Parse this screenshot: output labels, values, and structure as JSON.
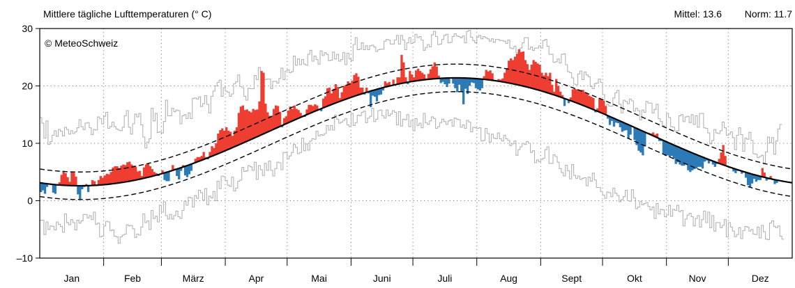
{
  "chart_data": {
    "type": "bar",
    "title": "Mittlere tägliche Lufttemperaturen (° C)",
    "copyright": "© MeteoSchweiz",
    "stats": {
      "mittel_label": "Mittel: 13.6",
      "norm_label": "Norm: 11.7"
    },
    "ylim": [
      -10,
      30
    ],
    "yticks": [
      -10,
      0,
      10,
      20,
      30
    ],
    "ytick_labels": [
      "–10",
      "0",
      "10",
      "20",
      "30"
    ],
    "months": [
      "Jan",
      "Feb",
      "März",
      "Apr",
      "Mai",
      "Juni",
      "Juli",
      "Aug",
      "Sept",
      "Okt",
      "Nov",
      "Dez"
    ],
    "month_days": [
      31,
      28,
      31,
      30,
      31,
      30,
      31,
      31,
      30,
      31,
      30,
      31
    ],
    "grid": true,
    "norm": {
      "min": 2.6,
      "max": 21.4,
      "peak_day": 202
    },
    "norm_band": 2.4,
    "colors": {
      "above_norm": "#ee3e32",
      "below_norm": "#2c7bb6",
      "extremes": "#b3b3b3",
      "norm_line": "#000000"
    },
    "series": [
      {
        "name": "Tagesmittel",
        "values": [
          1.5,
          1.8,
          1.2,
          2.4,
          3.0,
          2.8,
          1.4,
          1.2,
          2.6,
          3.2,
          4.5,
          5.2,
          4.8,
          4.1,
          3.3,
          5.0,
          4.9,
          4.2,
          1.1,
          0.2,
          2.0,
          2.4,
          2.9,
          1.5,
          2.7,
          3.6,
          3.4,
          2.6,
          3.6,
          4.3,
          4.0,
          4.4,
          4.7,
          4.6,
          5.0,
          5.8,
          6.0,
          6.0,
          5.7,
          6.1,
          6.3,
          6.2,
          6.7,
          6.8,
          6.3,
          6.1,
          5.9,
          5.1,
          5.2,
          4.3,
          5.8,
          6.3,
          6.5,
          6.0,
          5.5,
          5.0,
          4.8,
          4.3,
          4.6,
          5.3,
          3.6,
          3.4,
          3.4,
          5.3,
          6.2,
          5.6,
          4.3,
          3.7,
          5.2,
          6.2,
          4.4,
          4.1,
          4.6,
          5.2,
          6.4,
          7.3,
          7.6,
          7.6,
          7.8,
          8.5,
          7.6,
          7.2,
          8.5,
          9.5,
          9.2,
          10.0,
          11.7,
          12.3,
          12.6,
          12.2,
          12.8,
          12.2,
          12.0,
          11.3,
          12.2,
          12.8,
          15.3,
          16.4,
          16.6,
          15.8,
          15.9,
          15.6,
          15.4,
          16.0,
          15.8,
          15.9,
          17.3,
          22.6,
          22.3,
          16.9,
          15.4,
          14.8,
          14.6,
          16.0,
          16.6,
          16.5,
          15.5,
          12.8,
          14.4,
          14.7,
          15.7,
          16.4,
          16.0,
          16.6,
          16.0,
          15.8,
          15.3,
          14.8,
          14.6,
          15.9,
          16.7,
          16.7,
          16.5,
          16.8,
          16.6,
          16.0,
          15.6,
          17.8,
          18.2,
          19.6,
          19.7,
          18.7,
          19.5,
          20.3,
          19.8,
          17.9,
          18.9,
          20.0,
          20.2,
          20.8,
          20.5,
          20.9,
          21.9,
          22.2,
          21.6,
          19.7,
          19.7,
          18.5,
          19.7,
          18.7,
          16.3,
          18.3,
          18.1,
          17.3,
          18.4,
          18.5,
          19.2,
          20.8,
          20.5,
          20.7,
          20.0,
          21.1,
          20.3,
          21.5,
          21.5,
          25.4,
          24.1,
          21.5,
          20.3,
          22.6,
          22.0,
          21.5,
          22.7,
          23.0,
          22.6,
          22.3,
          22.0,
          21.3,
          22.1,
          22.9,
          23.4,
          24.1,
          23.4,
          21.8,
          20.5,
          20.7,
          20.3,
          19.8,
          20.4,
          21.5,
          20.4,
          19.6,
          18.9,
          20.2,
          18.9,
          16.8,
          19.5,
          18.6,
          20.0,
          20.6,
          20.5,
          19.6,
          19.4,
          19.2,
          19.6,
          21.7,
          22.8,
          22.5,
          22.7,
          22.2,
          21.0,
          20.8,
          21.2,
          21.1,
          21.3,
          22.3,
          23.1,
          24.4,
          24.8,
          24.5,
          25.1,
          25.6,
          26.4,
          25.9,
          26.0,
          24.5,
          23.8,
          22.8,
          23.7,
          24.5,
          24.2,
          23.9,
          23.7,
          22.3,
          21.8,
          22.3,
          21.7,
          22.3,
          20.2,
          19.0,
          21.2,
          20.0,
          19.0,
          18.4,
          16.5,
          17.6,
          17.0,
          18.0,
          19.4,
          19.5,
          19.4,
          19.3,
          19.3,
          19.3,
          18.9,
          18.7,
          18.3,
          18.1,
          17.9,
          15.4,
          16.1,
          17.9,
          17.7,
          17.4,
          16.5,
          14.3,
          13.2,
          13.9,
          12.9,
          13.6,
          13.5,
          12.8,
          12.0,
          12.2,
          12.3,
          10.8,
          11.5,
          12.9,
          10.6,
          9.7,
          8.7,
          8.4,
          7.9,
          9.5,
          11.9,
          11.8,
          11.7,
          11.9,
          11.5,
          11.7,
          10.4,
          10.4,
          8.2,
          7.8,
          7.9,
          7.7,
          7.8,
          7.3,
          6.4,
          6.7,
          6.3,
          6.1,
          6.1,
          6.4,
          5.3,
          5.0,
          5.3,
          5.5,
          5.6,
          5.9,
          5.9,
          5.6,
          6.8,
          7.0,
          6.5,
          6.9,
          6.3,
          5.9,
          6.4,
          7.3,
          8.4,
          9.7,
          7.8,
          6.1,
          5.7,
          5.7,
          5.1,
          4.8,
          5.2,
          5.4,
          4.7,
          4.9,
          4.0,
          2.7,
          2.3,
          3.0,
          3.8,
          3.3,
          3.6,
          3.6,
          5.7,
          4.9,
          3.5,
          3.7,
          4.3,
          3.6,
          2.9,
          3.1
        ]
      },
      {
        "name": "Tagesmaximum",
        "values": [
          14.5,
          13.5,
          10.9,
          13.9,
          9.8,
          10.3,
          11.4,
          12.2,
          11.2,
          12.4,
          12.1,
          11.3,
          12.8,
          12.4,
          11.6,
          12.2,
          11.7,
          12.0,
          12.7,
          14.1,
          12.9,
          12.4,
          13.5,
          13.6,
          12.7,
          11.5,
          12.4,
          12.3,
          14.6,
          14.3,
          13.4,
          14.7,
          15.4,
          12.6,
          12.9,
          13.7,
          12.9,
          12.5,
          12.3,
          12.2,
          12.8,
          14.8,
          15.7,
          12.8,
          11.6,
          13.4,
          15.1,
          14.6,
          15.2,
          13.2,
          11.1,
          9.2,
          10.2,
          10.8,
          16.1,
          13.9,
          15.2,
          11.9,
          12.0,
          11.8,
          13.8,
          17.5,
          14.8,
          14.8,
          16.1,
          15.5,
          15.8,
          15.7,
          13.4,
          14.8,
          15.0,
          14.3,
          15.3,
          14.3,
          17.8,
          17.9,
          17.7,
          18.1,
          16.4,
          16.9,
          18.3,
          16.8,
          15.3,
          18.2,
          19.1,
          20.0,
          20.6,
          21.0,
          18.2,
          19.7,
          19.1,
          18.9,
          18.2,
          18.6,
          20.4,
          20.7,
          21.9,
          19.9,
          19.7,
          18.2,
          17.5,
          19.6,
          19.5,
          19.5,
          21.8,
          21.1,
          23.2,
          22.5,
          21.6,
          21.1,
          21.2,
          21.2,
          19.5,
          20.8,
          20.8,
          20.5,
          21.3,
          23.1,
          21.1,
          22.6,
          22.8,
          22.3,
          22.5,
          25.2,
          23.6,
          24.7,
          23.7,
          24.6,
          23.8,
          23.6,
          25.5,
          26.2,
          24.3,
          25.2,
          24.6,
          23.8,
          26.1,
          25.3,
          25.8,
          25.5,
          24.4,
          24.5,
          25.9,
          24.7,
          25.5,
          24.3,
          24.6,
          25.8,
          23.7,
          25.7,
          24.7,
          24.4,
          27.2,
          28.4,
          26.3,
          26.4,
          27.5,
          26.3,
          27.0,
          26.3,
          27.0,
          27.1,
          26.8,
          26.0,
          26.3,
          26.4,
          26.4,
          27.8,
          28.1,
          28.0,
          27.3,
          27.3,
          28.0,
          28.8,
          27.3,
          28.8,
          28.0,
          26.3,
          27.5,
          28.4,
          27.4,
          27.6,
          29.0,
          28.4,
          28.6,
          28.0,
          26.2,
          26.7,
          27.2,
          26.8,
          28.9,
          29.5,
          28.6,
          27.2,
          27.3,
          28.1,
          28.8,
          29.0,
          27.5,
          27.6,
          28.6,
          29.1,
          28.7,
          28.6,
          28.4,
          28.7,
          27.5,
          29.5,
          29.7,
          28.5,
          27.9,
          27.5,
          28.5,
          28.8,
          28.2,
          28.6,
          28.4,
          28.2,
          27.8,
          28.2,
          27.6,
          28.1,
          28.1,
          27.9,
          27.9,
          27.8,
          27.4,
          28.0,
          26.6,
          26.5,
          26.9,
          25.8,
          25.4,
          26.6,
          27.5,
          28.4,
          28.4,
          26.4,
          26.8,
          26.2,
          26.6,
          26.6,
          27.0,
          26.6,
          27.9,
          28.1,
          26.9,
          25.5,
          25.5,
          24.1,
          24.2,
          24.7,
          24.0,
          25.5,
          25.6,
          23.7,
          22.5,
          22.3,
          21.4,
          20.3,
          20.2,
          22.1,
          22.6,
          21.1,
          22.4,
          21.9,
          21.6,
          19.9,
          19.5,
          20.4,
          20.5,
          21.2,
          20.6,
          18.5,
          16.4,
          16.8,
          16.5,
          16.5,
          17.9,
          18.8,
          19.2,
          16.8,
          15.3,
          17.5,
          17.3,
          16.9,
          17.7,
          17.4,
          15.6,
          16.1,
          15.7,
          14.1,
          15.8,
          15.4,
          17.3,
          17.0,
          17.0,
          15.3,
          15.9,
          16.8,
          14.3,
          13.8,
          13.1,
          12.8,
          15.2,
          14.5,
          12.9,
          12.8,
          12.1,
          12.2,
          14.8,
          15.0,
          13.8,
          14.6,
          14.7,
          13.6,
          15.0,
          13.3,
          14.8,
          12.8,
          15.2,
          15.2,
          12.7,
          12.6,
          11.8,
          9.9,
          10.5,
          12.4,
          11.8,
          11.7,
          12.2,
          13.7,
          12.7,
          11.4,
          11.6,
          12.0,
          11.0,
          8.9,
          11.4,
          12.7,
          11.5,
          8.6,
          10.9,
          10.7,
          11.9,
          10.5,
          8.2,
          8.1,
          7.5,
          7.7,
          7.9,
          6.4,
          8.5,
          11.1,
          10.1,
          11.0,
          8.1,
          10.4,
          12.5,
          13.3
        ]
      },
      {
        "name": "Tagesminimum",
        "values": [
          -3.4,
          -3.4,
          -5.9,
          -3.7,
          -5.0,
          -4.4,
          -4.5,
          -5.1,
          -3.7,
          -4.1,
          -4.5,
          -5.5,
          -2.3,
          -3.8,
          -4.2,
          -3.3,
          -3.8,
          -5.1,
          -3.4,
          -3.9,
          -3.5,
          -2.4,
          -2.4,
          -3.0,
          -2.6,
          -3.3,
          -2.0,
          -4.1,
          -3.9,
          -6.3,
          -6.2,
          -4.4,
          -3.6,
          -3.7,
          -5.2,
          -5.1,
          -6.2,
          -6.3,
          -7.4,
          -6.3,
          -6.0,
          -5.8,
          -4.2,
          -4.4,
          -4.3,
          -4.9,
          -6.4,
          -5.8,
          -6.0,
          -4.6,
          -2.3,
          -3.8,
          -3.5,
          -5.0,
          -1.7,
          -3.1,
          -2.7,
          -3.7,
          -0.8,
          -2.0,
          -0.2,
          -2.6,
          -3.2,
          -2.4,
          -3.2,
          -2.6,
          -1.8,
          -2.8,
          -3.1,
          -1.7,
          -0.1,
          -0.8,
          0.6,
          0.5,
          -1.1,
          0.9,
          0.4,
          1.8,
          1.4,
          0.1,
          2.1,
          -0.7,
          0.8,
          0.5,
          1.6,
          0.0,
          3.4,
          2.1,
          4.3,
          4.2,
          3.5,
          2.7,
          2.5,
          4.1,
          1.7,
          2.2,
          3.4,
          3.6,
          5.8,
          5.1,
          5.2,
          6.1,
          5.9,
          5.3,
          6.7,
          3.7,
          6.1,
          5.4,
          4.4,
          6.5,
          5.3,
          6.9,
          5.3,
          4.3,
          5.6,
          6.7,
          6.6,
          5.4,
          8.4,
          8.4,
          7.3,
          7.8,
          8.4,
          9.8,
          9.3,
          8.2,
          8.4,
          10.9,
          8.7,
          9.9,
          8.8,
          10.4,
          10.8,
          10.7,
          12.1,
          11.3,
          11.5,
          11.4,
          11.7,
          13.1,
          12.3,
          13.1,
          12.3,
          14.9,
          14.2,
          13.5,
          13.7,
          14.0,
          14.3,
          13.2,
          12.9,
          15.2,
          13.1,
          13.6,
          14.9,
          14.8,
          15.4,
          15.6,
          13.6,
          14.4,
          14.7,
          16.1,
          13.8,
          14.2,
          15.7,
          15.8,
          14.8,
          14.4,
          15.8,
          14.8,
          15.1,
          15.7,
          15.4,
          13.2,
          15.5,
          13.0,
          14.2,
          14.1,
          15.0,
          12.9,
          14.0,
          12.2,
          14.3,
          13.1,
          13.5,
          12.7,
          15.2,
          13.6,
          13.3,
          13.9,
          14.6,
          14.3,
          12.6,
          12.9,
          13.6,
          14.2,
          13.8,
          13.3,
          13.9,
          14.1,
          13.0,
          14.4,
          14.2,
          14.1,
          12.8,
          13.2,
          12.6,
          14.0,
          13.7,
          12.0,
          12.8,
          12.7,
          12.6,
          12.7,
          10.4,
          10.5,
          12.6,
          11.7,
          10.2,
          11.6,
          10.9,
          10.8,
          11.8,
          10.8,
          10.4,
          11.4,
          10.8,
          10.5,
          9.6,
          9.9,
          10.4,
          7.9,
          8.9,
          9.4,
          10.0,
          9.8,
          10.3,
          10.0,
          8.4,
          8.7,
          6.6,
          7.1,
          6.8,
          7.2,
          7.4,
          8.9,
          9.4,
          6.5,
          6.5,
          8.0,
          7.7,
          6.7,
          5.6,
          4.9,
          4.3,
          6.2,
          5.2,
          3.8,
          6.3,
          4.4,
          3.9,
          4.3,
          3.7,
          3.9,
          4.0,
          2.6,
          4.1,
          3.4,
          4.8,
          3.6,
          2.3,
          2.3,
          1.6,
          1.0,
          0.4,
          1.5,
          1.4,
          0.7,
          2.2,
          1.3,
          0.9,
          -0.2,
          0.2,
          0.7,
          1.8,
          0.0,
          -0.1,
          1.9,
          0.5,
          -1.4,
          -1.1,
          -0.1,
          -0.7,
          -0.5,
          -0.3,
          -1.0,
          -1.6,
          -1.1,
          -3.1,
          -0.5,
          -2.3,
          -1.5,
          -1.6,
          -2.8,
          -2.5,
          -0.8,
          -2.7,
          -1.5,
          -1.7,
          -0.8,
          -1.9,
          -1.7,
          -4.4,
          -3.2,
          -2.5,
          -2.2,
          -2.8,
          -4.4,
          -3.1,
          -2.6,
          -4.6,
          -3.3,
          -1.8,
          -3.8,
          -2.0,
          -4.7,
          -2.6,
          -5.3,
          -3.8,
          -3.8,
          -4.7,
          -4.3,
          -3.3,
          -6.3,
          -3.8,
          -4.6,
          -5.3,
          -6.3,
          -5.9,
          -4.7,
          -6.6,
          -5.2,
          -4.5,
          -4.6,
          -5.3,
          -5.0,
          -5.8,
          -5.9,
          -4.6,
          -6.5,
          -4.3,
          -5.4,
          -6.7,
          -6.8,
          -3.9,
          -3.5,
          -4.5,
          -4.7,
          -4.4,
          -6.2,
          -6.7
        ]
      }
    ]
  }
}
